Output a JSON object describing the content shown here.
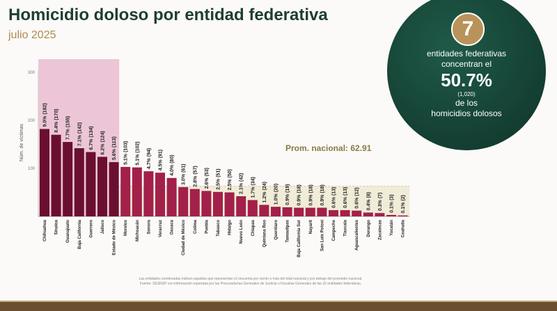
{
  "header": {
    "title": "Homicidio doloso por entidad federativa",
    "subtitle": "julio 2025"
  },
  "callout": {
    "number": "7",
    "line1": "entidades federativas",
    "line2": "concentran el",
    "percent": "50.7%",
    "count": "(1,020)",
    "line3": "de los",
    "line4": "homicidios dolosos"
  },
  "footer": {
    "note": "Las entidades sombreadas indican aquellas que representan el cincuenta por ciento o más del total nacional y por debajo del promedio nacional.",
    "source": "Fuente: SESNSP con información reportada por las Procuradurías Generales de Justicia o Fiscalías Generales de las 32 entidades federativas."
  },
  "colors": {
    "top": "#6b0f30",
    "rest": "#a3204a",
    "shade": "#ecc6d6",
    "band": "#f0ecd8",
    "avg": "#8a7a45"
  },
  "chart_data": {
    "type": "bar",
    "ylabel": "Núm. de víctimas",
    "yticks": [
      100,
      200,
      300
    ],
    "ylim": [
      0,
      320
    ],
    "average_label": "Prom. nacional: 62.91",
    "average": 62.91,
    "highlight_count": 7,
    "categories": [
      "Chihuahua",
      "Sinaloa",
      "Guanajuato",
      "Baja California",
      "Guerrero",
      "Jalisco",
      "Estado de México",
      "Morelos",
      "Michoacán",
      "Sonora",
      "Veracruz",
      "Oaxaca",
      "Ciudad de México",
      "Colima",
      "Puebla",
      "Tabasco",
      "Hidalgo",
      "Nuevo León",
      "Chiapas",
      "Quintana Roo",
      "Querétaro",
      "Tamaulipas",
      "Baja California Sur",
      "Nayarit",
      "San Luis Potosí",
      "Campeche",
      "Tlaxcala",
      "Aguascalientes",
      "Durango",
      "Zacatecas",
      "Yucatán",
      "Coahuila"
    ],
    "values": [
      182,
      170,
      155,
      142,
      134,
      124,
      113,
      103,
      102,
      94,
      91,
      80,
      61,
      57,
      53,
      51,
      50,
      42,
      34,
      24,
      20,
      19,
      18,
      18,
      18,
      13,
      13,
      12,
      8,
      7,
      3,
      2
    ],
    "labels": [
      "9.0% (182)",
      "8.4% (170)",
      "7.7% (155)",
      "7.1% (142)",
      "6.7% (134)",
      "6.2% (124)",
      "5.6% (113)",
      "5.1% (103)",
      "5.1% (102)",
      "4.7% (94)",
      "4.5% (91)",
      "4.0% (80)",
      "3.0% (61)",
      "2.8% (57)",
      "2.6% (53)",
      "2.5% (51)",
      "2.5% (50)",
      "2.1% (42)",
      "1.7% (34)",
      "1.2% (24)",
      "1.0% (20)",
      "0.9% (19)",
      "0.9% (18)",
      "0.9% (18)",
      "0.9% (18)",
      "0.6% (13)",
      "0.6% (13)",
      "0.6% (12)",
      "0.4% (8)",
      "0.3% (7)",
      "0.1% (3)",
      "0.1% (2)"
    ]
  }
}
